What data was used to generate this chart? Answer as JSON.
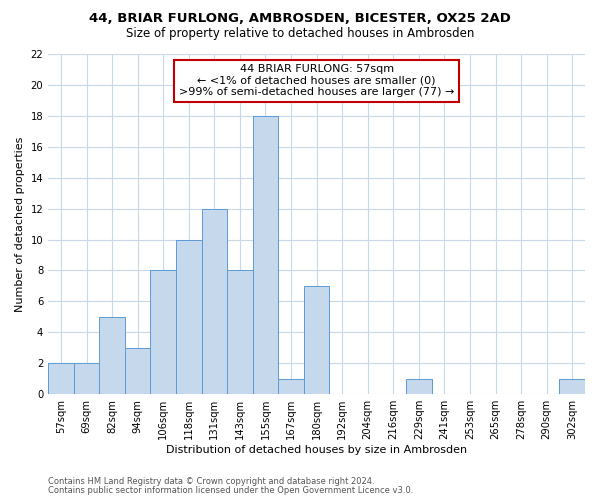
{
  "title": "44, BRIAR FURLONG, AMBROSDEN, BICESTER, OX25 2AD",
  "subtitle": "Size of property relative to detached houses in Ambrosden",
  "xlabel": "Distribution of detached houses by size in Ambrosden",
  "ylabel": "Number of detached properties",
  "bin_labels": [
    "57sqm",
    "69sqm",
    "82sqm",
    "94sqm",
    "106sqm",
    "118sqm",
    "131sqm",
    "143sqm",
    "155sqm",
    "167sqm",
    "180sqm",
    "192sqm",
    "204sqm",
    "216sqm",
    "229sqm",
    "241sqm",
    "253sqm",
    "265sqm",
    "278sqm",
    "290sqm",
    "302sqm"
  ],
  "bar_heights": [
    2,
    2,
    5,
    3,
    8,
    10,
    12,
    8,
    18,
    1,
    7,
    0,
    0,
    0,
    1,
    0,
    0,
    0,
    0,
    0,
    1
  ],
  "bar_color": "#c5d8ec",
  "bar_edge_color": "#5b9bd5",
  "annotation_line1": "44 BRIAR FURLONG: 57sqm",
  "annotation_line2": "← <1% of detached houses are smaller (0)",
  "annotation_line3": ">99% of semi-detached houses are larger (77) →",
  "annotation_box_edge_color": "#c00000",
  "annotation_box_face_color": "#ffffff",
  "ylim": [
    0,
    22
  ],
  "yticks": [
    0,
    2,
    4,
    6,
    8,
    10,
    12,
    14,
    16,
    18,
    20,
    22
  ],
  "footnote1": "Contains HM Land Registry data © Crown copyright and database right 2024.",
  "footnote2": "Contains public sector information licensed under the Open Government Licence v3.0.",
  "bg_color": "#ffffff",
  "grid_color": "#c8d8e8",
  "title_fontsize": 9.5,
  "subtitle_fontsize": 8.5,
  "annotation_fontsize": 8.0,
  "axis_label_fontsize": 8.0,
  "tick_fontsize": 7.2,
  "footnote_fontsize": 6.0
}
